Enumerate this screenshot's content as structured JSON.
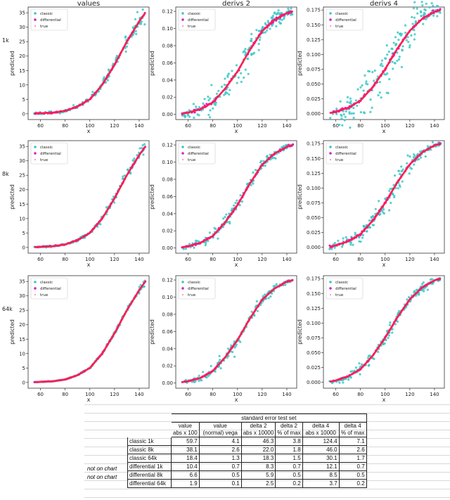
{
  "chart_data": [
    {
      "type": "scatter",
      "column_title": "values",
      "row_label": "1k",
      "ylabel": "predicted",
      "xlabel": "x",
      "xlim": [
        50,
        148
      ],
      "ylim": [
        -2,
        37
      ],
      "xticks": [
        60,
        80,
        100,
        120,
        140
      ],
      "yticks": [
        0,
        5,
        10,
        15,
        20,
        25,
        30,
        35
      ],
      "legend": [
        "classic",
        "differential",
        "true"
      ],
      "legend_placement": "top-left",
      "classic_error": 0.597,
      "differential_error": 0.104
    },
    {
      "type": "scatter",
      "column_title": "derivs 2",
      "row_label": "1k",
      "ylabel": "predicted",
      "xlabel": "x",
      "xlim": [
        50,
        148
      ],
      "ylim": [
        -0.006,
        0.125
      ],
      "xticks": [
        60,
        80,
        100,
        120,
        140
      ],
      "yticks": [
        0.0,
        0.02,
        0.04,
        0.06,
        0.08,
        0.1,
        0.12
      ],
      "legend": [
        "classic",
        "differential",
        "true"
      ],
      "legend_placement": "top-left",
      "classic_error": 0.00463,
      "differential_error": 0.00083
    },
    {
      "type": "scatter",
      "column_title": "derivs 4",
      "row_label": "1k",
      "ylabel": "predicted",
      "xlabel": "x",
      "xlim": [
        50,
        148
      ],
      "ylim": [
        -0.01,
        0.18
      ],
      "xticks": [
        60,
        80,
        100,
        120,
        140
      ],
      "yticks": [
        0.0,
        0.025,
        0.05,
        0.075,
        0.1,
        0.125,
        0.15,
        0.175
      ],
      "legend": [
        "classic",
        "differential",
        "true"
      ],
      "legend_placement": "top-left",
      "classic_error": 0.01244,
      "differential_error": 0.00121
    },
    {
      "type": "scatter",
      "row_label": "8k",
      "ylabel": "predicted",
      "xlabel": "x",
      "xlim": [
        50,
        148
      ],
      "ylim": [
        -2,
        37
      ],
      "xticks": [
        60,
        80,
        100,
        120,
        140
      ],
      "yticks": [
        0,
        5,
        10,
        15,
        20,
        25,
        30,
        35
      ],
      "legend": [
        "classic",
        "differential",
        "true"
      ],
      "legend_placement": "top-left",
      "classic_error": 0.381,
      "differential_error": 0.066
    },
    {
      "type": "scatter",
      "row_label": "8k",
      "ylabel": "predicted",
      "xlabel": "x",
      "xlim": [
        50,
        148
      ],
      "ylim": [
        -0.006,
        0.125
      ],
      "xticks": [
        60,
        80,
        100,
        120,
        140
      ],
      "yticks": [
        0.0,
        0.02,
        0.04,
        0.06,
        0.08,
        0.1,
        0.12
      ],
      "legend": [
        "classic",
        "differential",
        "true"
      ],
      "legend_placement": "top-left",
      "classic_error": 0.0022,
      "differential_error": 0.00059
    },
    {
      "type": "scatter",
      "row_label": "8k",
      "ylabel": "predicted",
      "xlabel": "x",
      "xlim": [
        50,
        148
      ],
      "ylim": [
        -0.01,
        0.18
      ],
      "xticks": [
        60,
        80,
        100,
        120,
        140
      ],
      "yticks": [
        0.0,
        0.025,
        0.05,
        0.075,
        0.1,
        0.125,
        0.15,
        0.175
      ],
      "legend": [
        "classic",
        "differential",
        "true"
      ],
      "legend_placement": "top-left",
      "classic_error": 0.0046,
      "differential_error": 0.00085
    },
    {
      "type": "scatter",
      "row_label": "64k",
      "ylabel": "predicted",
      "xlabel": "x",
      "xlim": [
        50,
        148
      ],
      "ylim": [
        -2,
        37
      ],
      "xticks": [
        60,
        80,
        100,
        120,
        140
      ],
      "yticks": [
        0,
        5,
        10,
        15,
        20,
        25,
        30,
        35
      ],
      "legend": [
        "classic",
        "differential",
        "true"
      ],
      "legend_placement": "top-left",
      "classic_error": 0.184,
      "differential_error": 0.019
    },
    {
      "type": "scatter",
      "row_label": "64k",
      "ylabel": "predicted",
      "xlabel": "x",
      "xlim": [
        50,
        148
      ],
      "ylim": [
        -0.006,
        0.125
      ],
      "xticks": [
        60,
        80,
        100,
        120,
        140
      ],
      "yticks": [
        0.0,
        0.02,
        0.04,
        0.06,
        0.08,
        0.1,
        0.12
      ],
      "legend": [
        "classic",
        "differential",
        "true"
      ],
      "legend_placement": "top-left",
      "classic_error": 0.00183,
      "differential_error": 0.00025
    },
    {
      "type": "scatter",
      "row_label": "64k",
      "ylabel": "predicted",
      "xlabel": "x",
      "xlim": [
        50,
        148
      ],
      "ylim": [
        -0.01,
        0.18
      ],
      "xticks": [
        60,
        80,
        100,
        120,
        140
      ],
      "yticks": [
        0.0,
        0.025,
        0.05,
        0.075,
        0.1,
        0.125,
        0.15,
        0.175
      ],
      "legend": [
        "classic",
        "differential",
        "true"
      ],
      "legend_placement": "top-left",
      "classic_error": 0.00301,
      "differential_error": 0.00037
    }
  ],
  "true_curves": {
    "x": [
      55,
      60,
      70,
      80,
      90,
      100,
      110,
      120,
      130,
      140,
      145
    ],
    "values": [
      0.1,
      0.2,
      0.4,
      1.0,
      2.5,
      5.0,
      10.0,
      17.0,
      25.0,
      32.0,
      35.0
    ],
    "derivs 2": [
      0.001,
      0.002,
      0.006,
      0.014,
      0.03,
      0.05,
      0.075,
      0.097,
      0.11,
      0.118,
      0.12
    ],
    "derivs 4": [
      0.001,
      0.003,
      0.01,
      0.022,
      0.045,
      0.075,
      0.11,
      0.14,
      0.16,
      0.172,
      0.175
    ]
  },
  "colors": {
    "classic": "#3cc8c8",
    "differential": "#d524c8",
    "true": "#ff1f4e"
  },
  "table": {
    "title": "standard error test set",
    "headers": [
      [
        "value",
        "abs x 100"
      ],
      [
        "value",
        "(normal) vega"
      ],
      [
        "delta 2",
        "abs x 10000"
      ],
      [
        "delta 2",
        "% of max"
      ],
      [
        "delta 4",
        "abs x 10000"
      ],
      [
        "delta 4",
        "% of max"
      ]
    ],
    "rows": [
      {
        "note": "",
        "label": "classic 1k",
        "values": [
          "59.7",
          "4.1",
          "46.3",
          "3.8",
          "124.4",
          "7.1"
        ]
      },
      {
        "note": "",
        "label": "classic 8k",
        "values": [
          "38.1",
          "2.6",
          "22.0",
          "1.8",
          "46.0",
          "2.6"
        ]
      },
      {
        "note": "",
        "label": "classic 64k",
        "values": [
          "18.4",
          "1.3",
          "18.3",
          "1.5",
          "30.1",
          "1.7"
        ]
      },
      {
        "note": "",
        "label": "differential 1k",
        "values": [
          "10.4",
          "0.7",
          "8.3",
          "0.7",
          "12.1",
          "0.7"
        ]
      },
      {
        "note": "not on chart",
        "label": "differential 8k",
        "values": [
          "6.6",
          "0.5",
          "5.9",
          "0.5",
          "8.5",
          "0.5"
        ]
      },
      {
        "note": "not on chart",
        "label": "differential 64k",
        "values": [
          "1.9",
          "0.1",
          "2.5",
          "0.2",
          "3.7",
          "0.2"
        ]
      }
    ]
  }
}
